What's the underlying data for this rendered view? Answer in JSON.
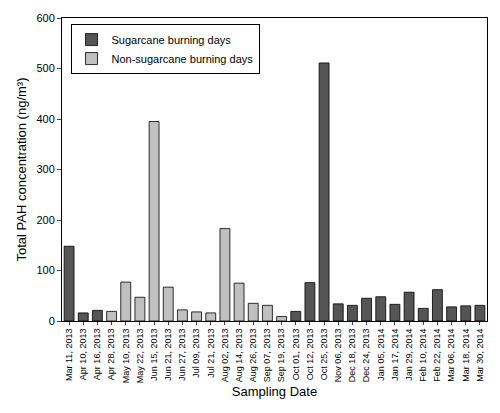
{
  "chart_data": {
    "type": "bar",
    "x_label": "Sampling Date",
    "y_label": "Total PAH concentration (ng/m³)",
    "categories": [
      "Mar 11, 2013",
      "Apr 10, 2013",
      "Apr 16, 2013",
      "Apr 28, 2013",
      "May 10, 2013",
      "May 22, 2013",
      "Jun 15, 2013",
      "Jun 21, 2013",
      "Jun 27, 2013",
      "Jul 09, 2013",
      "Jul 21, 2013",
      "Aug 02, 2013",
      "Aug 14, 2013",
      "Aug 26, 2013",
      "Sep 07, 2013",
      "Sep 19, 2013",
      "Oct 01, 2013",
      "Oct 12, 2013",
      "Oct 25, 2013",
      "Nov 06, 2013",
      "Dec 18, 2013",
      "Dec 24, 2013",
      "Jan 05, 2014",
      "Jan 17, 2014",
      "Jan 29, 2014",
      "Feb 10, 2014",
      "Feb 22, 2014",
      "Mar 06, 2014",
      "Mar 18, 2014",
      "Mar 30, 2014"
    ],
    "series": [
      {
        "name": "Sugarcane burning days",
        "color": "#555555",
        "values": [
          148,
          16,
          21,
          null,
          null,
          null,
          null,
          null,
          null,
          null,
          null,
          null,
          null,
          null,
          null,
          null,
          19,
          76,
          511,
          34,
          31,
          45,
          48,
          33,
          57,
          25,
          62,
          28,
          30,
          31
        ]
      },
      {
        "name": "Non-sugarcane burning days",
        "color": "#c0c0c0",
        "values": [
          null,
          null,
          null,
          19,
          77,
          47,
          395,
          67,
          22,
          18,
          16,
          183,
          75,
          35,
          31,
          9,
          null,
          null,
          null,
          null,
          null,
          null,
          null,
          null,
          null,
          null,
          null,
          null,
          null,
          null
        ]
      }
    ],
    "ylim": [
      0,
      600
    ],
    "yticks": [
      0,
      100,
      200,
      300,
      400,
      500,
      600
    ],
    "grid": false,
    "legend": "top-left"
  }
}
